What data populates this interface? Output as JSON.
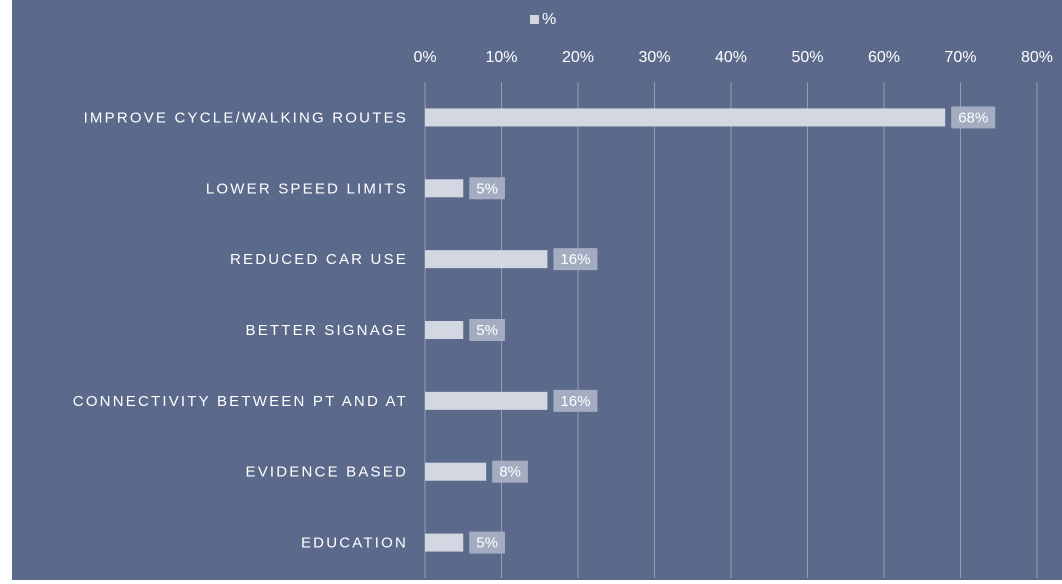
{
  "chart_data": {
    "type": "bar",
    "orientation": "horizontal",
    "categories": [
      "IMPROVE CYCLE/WALKING ROUTES",
      "LOWER SPEED LIMITS",
      "REDUCED CAR USE",
      "BETTER SIGNAGE",
      "CONNECTIVITY BETWEEN PT AND AT",
      "EVIDENCE BASED",
      "EDUCATION"
    ],
    "series": [
      {
        "name": "%",
        "color": "#d3d7e2",
        "values": [
          68,
          5,
          16,
          5,
          16,
          8,
          5
        ],
        "value_labels": [
          "68%",
          "5%",
          "16%",
          "5%",
          "16%",
          "8%",
          "5%"
        ]
      }
    ],
    "xlim": [
      0,
      80
    ],
    "xticks": [
      {
        "value": 0,
        "label": "0%"
      },
      {
        "value": 10,
        "label": "10%"
      },
      {
        "value": 20,
        "label": "20%"
      },
      {
        "value": 30,
        "label": "30%"
      },
      {
        "value": 40,
        "label": "40%"
      },
      {
        "value": 50,
        "label": "50%"
      },
      {
        "value": 60,
        "label": "60%"
      },
      {
        "value": 70,
        "label": "70%"
      },
      {
        "value": 80,
        "label": "80%"
      }
    ],
    "grid": true,
    "legend": "top"
  }
}
